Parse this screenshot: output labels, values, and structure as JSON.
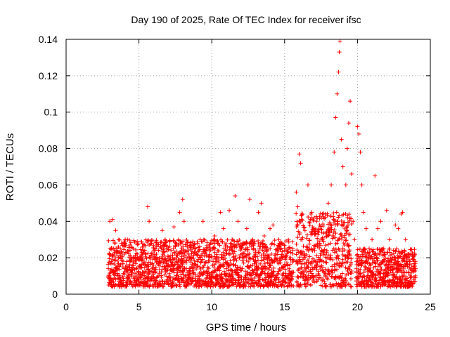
{
  "chart_data": {
    "type": "scatter",
    "title": "Day 190 of 2025, Rate Of TEC Index for receiver ifsc",
    "xlabel": "GPS time / hours",
    "ylabel": "ROTI / TECUs",
    "xlim": [
      0,
      25
    ],
    "ylim": [
      0,
      0.14
    ],
    "xticks": [
      0,
      5,
      10,
      15,
      20,
      25
    ],
    "xtick_labels": [
      "0",
      "5",
      "10",
      "15",
      "20",
      "25"
    ],
    "yticks": [
      0,
      0.02,
      0.04,
      0.06,
      0.08,
      0.1,
      0.12,
      0.14
    ],
    "ytick_labels": [
      "0",
      "0.02",
      "0.04",
      "0.06",
      "0.08",
      "0.1",
      "0.12",
      "0.14"
    ],
    "grid": true,
    "marker": "+",
    "color": "#ff0000",
    "series": [
      {
        "name": "ROTI",
        "points": [
          [
            2.9,
            0.01
          ],
          [
            3.0,
            0.04
          ],
          [
            3.1,
            0.018
          ],
          [
            3.2,
            0.041
          ],
          [
            3.3,
            0.012
          ],
          [
            3.4,
            0.035
          ],
          [
            3.5,
            0.024
          ],
          [
            3.6,
            0.02
          ],
          [
            3.7,
            0.008
          ],
          [
            3.8,
            0.028
          ],
          [
            3.9,
            0.015
          ],
          [
            4.0,
            0.022
          ],
          [
            4.2,
            0.012
          ],
          [
            4.4,
            0.018
          ],
          [
            4.6,
            0.025
          ],
          [
            4.8,
            0.014
          ],
          [
            5.0,
            0.019
          ],
          [
            5.2,
            0.01
          ],
          [
            5.4,
            0.024
          ],
          [
            5.6,
            0.048
          ],
          [
            5.7,
            0.04
          ],
          [
            5.8,
            0.02
          ],
          [
            6.0,
            0.012
          ],
          [
            6.2,
            0.022
          ],
          [
            6.4,
            0.018
          ],
          [
            6.6,
            0.035
          ],
          [
            6.8,
            0.03
          ],
          [
            7.0,
            0.015
          ],
          [
            7.2,
            0.024
          ],
          [
            7.4,
            0.037
          ],
          [
            7.6,
            0.02
          ],
          [
            7.8,
            0.045
          ],
          [
            8.0,
            0.052
          ],
          [
            8.1,
            0.04
          ],
          [
            8.3,
            0.02
          ],
          [
            8.6,
            0.015
          ],
          [
            8.8,
            0.028
          ],
          [
            9.0,
            0.018
          ],
          [
            9.2,
            0.03
          ],
          [
            9.4,
            0.04
          ],
          [
            9.6,
            0.024
          ],
          [
            9.8,
            0.012
          ],
          [
            10.0,
            0.02
          ],
          [
            10.2,
            0.032
          ],
          [
            10.4,
            0.028
          ],
          [
            10.6,
            0.045
          ],
          [
            10.8,
            0.036
          ],
          [
            11.0,
            0.024
          ],
          [
            11.2,
            0.046
          ],
          [
            11.4,
            0.03
          ],
          [
            11.6,
            0.054
          ],
          [
            11.8,
            0.04
          ],
          [
            12.0,
            0.026
          ],
          [
            12.2,
            0.02
          ],
          [
            12.4,
            0.036
          ],
          [
            12.6,
            0.052
          ],
          [
            12.8,
            0.03
          ],
          [
            13.0,
            0.022
          ],
          [
            13.2,
            0.045
          ],
          [
            13.4,
            0.05
          ],
          [
            13.6,
            0.032
          ],
          [
            13.8,
            0.024
          ],
          [
            14.0,
            0.036
          ],
          [
            14.2,
            0.038
          ],
          [
            14.4,
            0.02
          ],
          [
            14.6,
            0.03
          ],
          [
            14.8,
            0.028
          ],
          [
            15.0,
            0.024
          ],
          [
            15.2,
            0.016
          ],
          [
            15.4,
            0.02
          ],
          [
            15.6,
            0.012
          ],
          [
            15.8,
            0.056
          ],
          [
            15.9,
            0.048
          ],
          [
            16.0,
            0.077
          ],
          [
            16.1,
            0.072
          ],
          [
            16.2,
            0.03
          ],
          [
            16.4,
            0.035
          ],
          [
            16.6,
            0.06
          ],
          [
            16.8,
            0.044
          ],
          [
            17.0,
            0.025
          ],
          [
            17.2,
            0.04
          ],
          [
            17.4,
            0.038
          ],
          [
            17.6,
            0.03
          ],
          [
            17.8,
            0.044
          ],
          [
            18.0,
            0.05
          ],
          [
            18.2,
            0.06
          ],
          [
            18.4,
            0.078
          ],
          [
            18.5,
            0.097
          ],
          [
            18.6,
            0.11
          ],
          [
            18.7,
            0.122
          ],
          [
            18.75,
            0.133
          ],
          [
            18.8,
            0.139
          ],
          [
            18.9,
            0.085
          ],
          [
            19.0,
            0.07
          ],
          [
            19.2,
            0.06
          ],
          [
            19.3,
            0.08
          ],
          [
            19.4,
            0.094
          ],
          [
            19.5,
            0.106
          ],
          [
            19.6,
            0.066
          ],
          [
            19.7,
            0.04
          ],
          [
            19.8,
            0.03
          ],
          [
            20.0,
            0.092
          ],
          [
            20.1,
            0.088
          ],
          [
            20.2,
            0.078
          ],
          [
            20.3,
            0.06
          ],
          [
            20.4,
            0.045
          ],
          [
            20.6,
            0.036
          ],
          [
            20.8,
            0.025
          ],
          [
            21.0,
            0.03
          ],
          [
            21.2,
            0.065
          ],
          [
            21.4,
            0.036
          ],
          [
            21.6,
            0.04
          ],
          [
            21.8,
            0.025
          ],
          [
            22.0,
            0.046
          ],
          [
            22.2,
            0.03
          ],
          [
            22.4,
            0.02
          ],
          [
            22.6,
            0.038
          ],
          [
            22.8,
            0.036
          ],
          [
            23.0,
            0.044
          ],
          [
            23.1,
            0.045
          ],
          [
            23.3,
            0.03
          ],
          [
            23.5,
            0.022
          ],
          [
            23.7,
            0.016
          ],
          [
            23.9,
            0.018
          ],
          [
            24.0,
            0.014
          ]
        ],
        "dense_bands": [
          {
            "from": 2.9,
            "to": 15.6,
            "low": 0.004,
            "high": 0.03
          },
          {
            "from": 15.8,
            "to": 19.6,
            "low": 0.004,
            "high": 0.045
          },
          {
            "from": 19.9,
            "to": 24.0,
            "low": 0.004,
            "high": 0.025
          }
        ]
      }
    ]
  }
}
